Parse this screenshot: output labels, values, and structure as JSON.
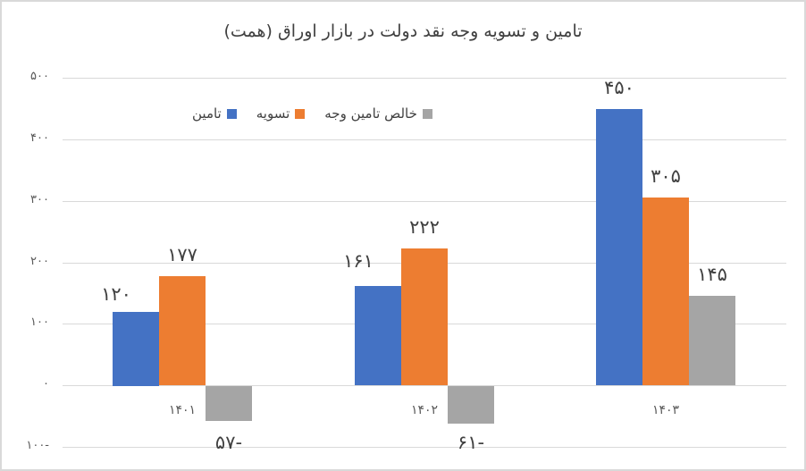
{
  "chart_data": {
    "type": "bar",
    "title": "تامین و تسویه وجه نقد دولت در بازار اوراق (همت)",
    "xlabel": "",
    "ylabel": "",
    "categories": [
      "۱۴۰۱",
      "۱۴۰۲",
      "۱۴۰۳"
    ],
    "categories_numeric": [
      1401,
      1402,
      1403
    ],
    "series": [
      {
        "name": "تامین",
        "color": "#4472C4",
        "values": [
          120,
          161,
          450
        ],
        "labels": [
          "۱۲۰",
          "۱۶۱",
          "۴۵۰"
        ]
      },
      {
        "name": "تسویه",
        "color": "#ED7D31",
        "values": [
          177,
          222,
          305
        ],
        "labels": [
          "۱۷۷",
          "۲۲۲",
          "۳۰۵"
        ]
      },
      {
        "name": "خالص تامین وجه",
        "color": "#A5A5A5",
        "values": [
          -57,
          -61,
          145
        ],
        "labels": [
          "۵۷-",
          "۶۱-",
          "۱۴۵"
        ]
      }
    ],
    "ylim": [
      -100,
      500
    ],
    "yticks": [
      500,
      400,
      300,
      200,
      100,
      0,
      -100
    ],
    "ytick_labels": [
      "۵۰۰",
      "۴۰۰",
      "۳۰۰",
      "۲۰۰",
      "۱۰۰",
      "۰",
      "۱۰۰-"
    ],
    "grid": true,
    "legend_position": "top-left inside plot"
  },
  "legend": {
    "items": [
      {
        "label": "تامین",
        "color": "#4472C4"
      },
      {
        "label": "تسویه",
        "color": "#ED7D31"
      },
      {
        "label": "خالص تامین وجه",
        "color": "#A5A5A5"
      }
    ]
  }
}
